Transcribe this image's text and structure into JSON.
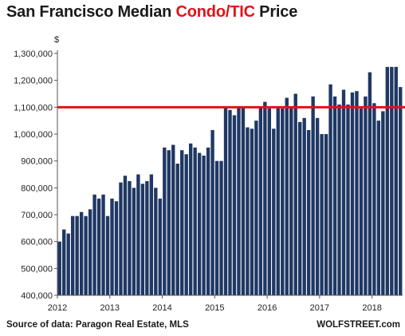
{
  "title": {
    "part1": "San Francisco Median ",
    "part2": "Condo/TIC",
    "part3": " Price"
  },
  "footer": {
    "source": "Source of data: Paragon Real Estate, MLS",
    "brand": "WOLFSTREET.com"
  },
  "colors": {
    "bar": "#1f3864",
    "reference_line": "#e1121a",
    "highlight_text": "#e1121a"
  },
  "chart_data": {
    "type": "bar",
    "ylabel": "$",
    "ylim": [
      400000,
      1300000
    ],
    "yticks": [
      400000,
      500000,
      600000,
      700000,
      800000,
      900000,
      1000000,
      1100000,
      1200000,
      1300000
    ],
    "ytick_labels": [
      "400,000",
      "500,000",
      "600,000",
      "700,000",
      "800,000",
      "900,000",
      "1,000,000",
      "1,100,000",
      "1,200,000",
      "1,300,000"
    ],
    "xtick_labels": [
      "2012",
      "2013",
      "2014",
      "2015",
      "2016",
      "2017",
      "2018"
    ],
    "x_start_year": 2012,
    "grid": false,
    "reference_line": 1100000,
    "categories": [
      "2012-01",
      "2012-02",
      "2012-03",
      "2012-04",
      "2012-05",
      "2012-06",
      "2012-07",
      "2012-08",
      "2012-09",
      "2012-10",
      "2012-11",
      "2012-12",
      "2013-01",
      "2013-02",
      "2013-03",
      "2013-04",
      "2013-05",
      "2013-06",
      "2013-07",
      "2013-08",
      "2013-09",
      "2013-10",
      "2013-11",
      "2013-12",
      "2014-01",
      "2014-02",
      "2014-03",
      "2014-04",
      "2014-05",
      "2014-06",
      "2014-07",
      "2014-08",
      "2014-09",
      "2014-10",
      "2014-11",
      "2014-12",
      "2015-01",
      "2015-02",
      "2015-03",
      "2015-04",
      "2015-05",
      "2015-06",
      "2015-07",
      "2015-08",
      "2015-09",
      "2015-10",
      "2015-11",
      "2015-12",
      "2016-01",
      "2016-02",
      "2016-03",
      "2016-04",
      "2016-05",
      "2016-06",
      "2016-07",
      "2016-08",
      "2016-09",
      "2016-10",
      "2016-11",
      "2016-12",
      "2017-01",
      "2017-02",
      "2017-03",
      "2017-04",
      "2017-05",
      "2017-06",
      "2017-07",
      "2017-08",
      "2017-09",
      "2017-10",
      "2017-11",
      "2017-12",
      "2018-01",
      "2018-02",
      "2018-03",
      "2018-04",
      "2018-05",
      "2018-06",
      "2018-07"
    ],
    "values": [
      600000,
      645000,
      630000,
      695000,
      695000,
      710000,
      695000,
      720000,
      775000,
      760000,
      775000,
      695000,
      760000,
      750000,
      820000,
      845000,
      825000,
      800000,
      850000,
      815000,
      825000,
      850000,
      800000,
      760000,
      950000,
      940000,
      960000,
      890000,
      940000,
      925000,
      965000,
      950000,
      930000,
      920000,
      950000,
      1015000,
      900000,
      900000,
      1100000,
      1090000,
      1070000,
      1100000,
      1100000,
      1025000,
      1020000,
      1050000,
      1100000,
      1120000,
      1095000,
      1020000,
      1100000,
      1095000,
      1135000,
      1100000,
      1150000,
      1045000,
      1060000,
      1015000,
      1140000,
      1060000,
      1000000,
      1000000,
      1185000,
      1140000,
      1110000,
      1165000,
      1110000,
      1155000,
      1160000,
      1095000,
      1140000,
      1230000,
      1115000,
      1050000,
      1085000,
      1250000,
      1250000,
      1250000,
      1175000
    ]
  }
}
